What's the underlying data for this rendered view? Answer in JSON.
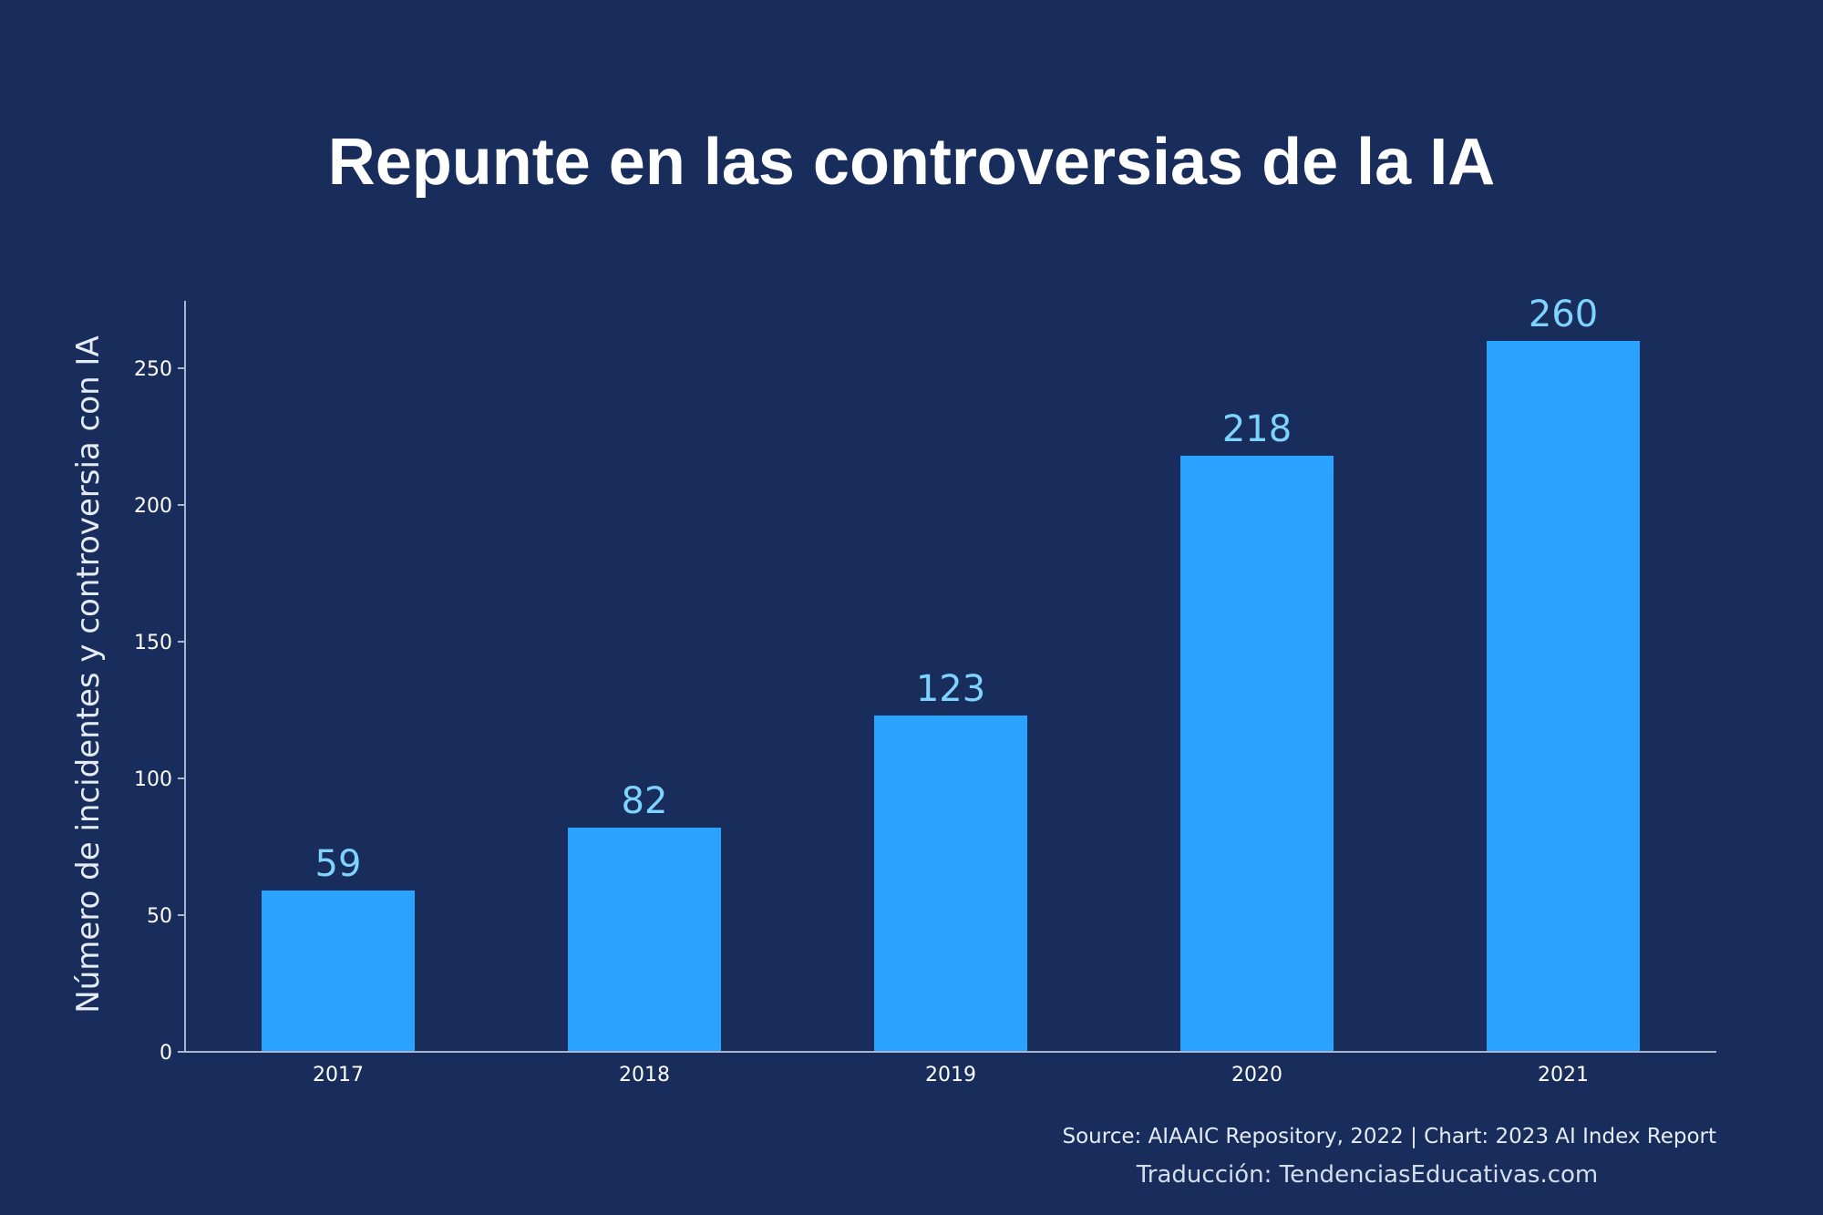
{
  "colors": {
    "background": "#182d5c",
    "bar": "#29a3ff",
    "data_label": "#7fd4ff",
    "axis": "#aab6cc",
    "text": "#ffffff"
  },
  "chart_data": {
    "type": "bar",
    "title": "Repunte en las controversias de la IA",
    "xlabel": "",
    "ylabel": "Número de incidentes y controversia con IA",
    "categories": [
      "2017",
      "2018",
      "2019",
      "2020",
      "2021"
    ],
    "values": [
      59,
      82,
      123,
      218,
      260
    ],
    "ylim": [
      0,
      275
    ],
    "yticks": [
      0,
      50,
      100,
      150,
      200,
      250
    ],
    "grid": false,
    "legend": "none",
    "data_labels": true
  },
  "footer": {
    "source": "Source: AIAAIC Repository, 2022 | Chart: 2023 AI Index Report",
    "translation": "Traducción: TendenciasEducativas.com"
  }
}
